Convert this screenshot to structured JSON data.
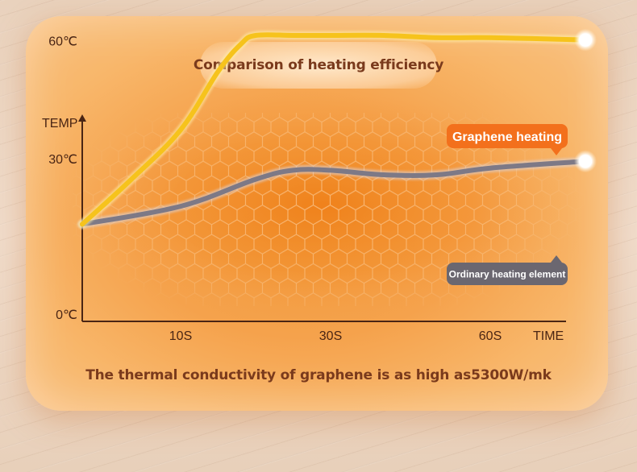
{
  "title": "Comparison of heating efficiency",
  "footer": "The thermal conductivity of graphene is as high as5300W/mk",
  "colors": {
    "graphene_line": "#f6c31c",
    "ordinary_line": "#7d7986",
    "graphene_badge": "#f3701c",
    "ordinary_badge": "#6b6770",
    "axis": "#4a2514",
    "text": "#7a3a1c"
  },
  "chart_data": {
    "type": "line",
    "ylabel": "TEMP",
    "xlabel": "TIME",
    "y_ticks": [
      "0℃",
      "30℃",
      "60℃"
    ],
    "y_tick_values": [
      0,
      30,
      60
    ],
    "x_ticks": [
      "10S",
      "30S",
      "60S"
    ],
    "x_tick_values": [
      10,
      30,
      60
    ],
    "grid": false,
    "series": [
      {
        "name": "Graphene heating",
        "color": "#f6c31c",
        "x": [
          0,
          5,
          10,
          15,
          18,
          20,
          25,
          30,
          40,
          50,
          60,
          65
        ],
        "y": [
          20,
          30,
          41,
          54,
          60,
          62,
          62,
          62,
          62,
          61.5,
          61.5,
          61
        ]
      },
      {
        "name": "Ordinary heating element",
        "color": "#7d7986",
        "x": [
          0,
          10,
          20,
          25,
          30,
          40,
          50,
          60,
          65
        ],
        "y": [
          20,
          24,
          30,
          32,
          32,
          31,
          31,
          32.5,
          34
        ]
      }
    ]
  }
}
